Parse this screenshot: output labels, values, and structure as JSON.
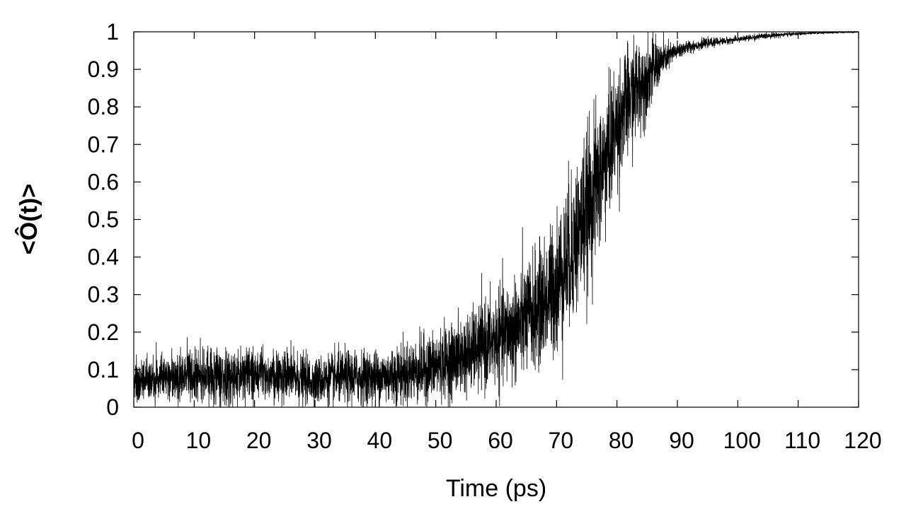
{
  "chart_data": {
    "type": "line",
    "title": "",
    "xlabel": "Time (ps)",
    "ylabel": "<Ô(t)>",
    "xlim": [
      0,
      120
    ],
    "ylim": [
      0,
      1
    ],
    "grid": false,
    "x_ticks": [
      0,
      10,
      20,
      30,
      40,
      50,
      60,
      70,
      80,
      90,
      100,
      110,
      120
    ],
    "x_tick_labels": [
      "0",
      "10",
      "20",
      "30",
      "40",
      "50",
      "60",
      "70",
      "80",
      "90",
      "100",
      "110",
      "120"
    ],
    "y_ticks": [
      0,
      0.1,
      0.2,
      0.3,
      0.4,
      0.5,
      0.6,
      0.7,
      0.8,
      0.9,
      1
    ],
    "y_tick_labels": [
      "0",
      "0.1",
      "0.2",
      "0.3",
      "0.4",
      "0.5",
      "0.6",
      "0.7",
      "0.8",
      "0.9",
      "1"
    ],
    "series": [
      {
        "color": "#000000",
        "x": [
          0,
          5,
          10,
          15,
          20,
          25,
          30,
          35,
          40,
          45,
          50,
          55,
          60,
          62,
          64,
          66,
          68,
          70,
          72,
          74,
          76,
          78,
          80,
          82,
          84,
          86,
          88,
          90,
          92,
          95,
          100,
          105,
          110,
          115,
          120
        ],
        "y": [
          0.07,
          0.08,
          0.09,
          0.08,
          0.09,
          0.08,
          0.07,
          0.08,
          0.08,
          0.09,
          0.11,
          0.14,
          0.18,
          0.2,
          0.22,
          0.25,
          0.28,
          0.33,
          0.4,
          0.48,
          0.57,
          0.65,
          0.75,
          0.82,
          0.86,
          0.9,
          0.93,
          0.95,
          0.96,
          0.97,
          0.98,
          0.99,
          0.995,
          0.998,
          1.0
        ],
        "fluctuation": [
          0.03,
          0.03,
          0.035,
          0.035,
          0.035,
          0.035,
          0.03,
          0.035,
          0.035,
          0.04,
          0.045,
          0.05,
          0.06,
          0.065,
          0.07,
          0.075,
          0.08,
          0.09,
          0.1,
          0.1,
          0.1,
          0.09,
          0.08,
          0.07,
          0.06,
          0.04,
          0.02,
          0.012,
          0.008,
          0.006,
          0.004,
          0.004,
          0.002,
          0.001,
          0.001
        ]
      }
    ]
  }
}
